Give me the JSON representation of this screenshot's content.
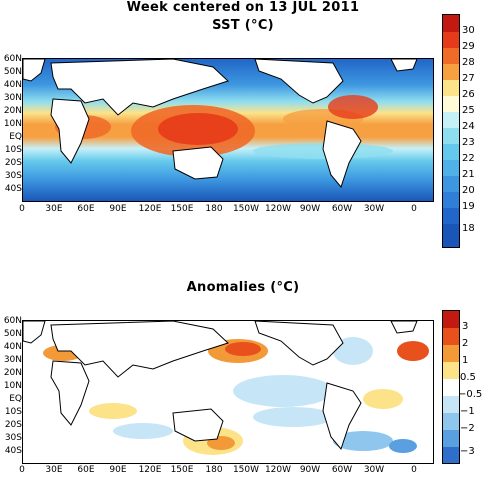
{
  "title": "Week centered on 13 JUL 2011",
  "panels": [
    {
      "subtitle": "SST (°C)",
      "lat_ticks": [
        "60N",
        "50N",
        "40N",
        "30N",
        "20N",
        "10N",
        "EQ",
        "10S",
        "20S",
        "30S",
        "40S"
      ],
      "lon_ticks": [
        "0",
        "30E",
        "60E",
        "90E",
        "120E",
        "150E",
        "180",
        "150W",
        "120W",
        "90W",
        "60W",
        "30W",
        "0"
      ],
      "legend_levels": [
        "30",
        "29",
        "28",
        "27",
        "26",
        "25",
        "24",
        "23",
        "22",
        "21",
        "20",
        "19",
        "18"
      ],
      "legend_colors": [
        "#c21a10",
        "#e63b1a",
        "#f06a28",
        "#f6a042",
        "#fce38a",
        "#fffbd8",
        "#c6f0f8",
        "#8fdef0",
        "#64c9ec",
        "#4fb1e8",
        "#3d97e0",
        "#2f7ed8",
        "#2166c8",
        "#1a56b8"
      ]
    },
    {
      "subtitle": "Anomalies (°C)",
      "lat_ticks": [
        "60N",
        "50N",
        "40N",
        "30N",
        "20N",
        "10N",
        "EQ",
        "10S",
        "20S",
        "30S",
        "40S"
      ],
      "lon_ticks": [
        "0",
        "30E",
        "60E",
        "90E",
        "120E",
        "150E",
        "180",
        "150W",
        "120W",
        "90W",
        "60W",
        "30W",
        "0"
      ],
      "legend_levels": [
        "3",
        "2",
        "1",
        "0.5",
        "−0.5",
        "−1",
        "−2",
        "−3"
      ],
      "legend_colors": [
        "#c21a10",
        "#e8501c",
        "#f29a38",
        "#fce38a",
        "#ffffff",
        "#c6e6f8",
        "#8ec6ee",
        "#5aa0e0",
        "#2e6fcc"
      ]
    }
  ]
}
